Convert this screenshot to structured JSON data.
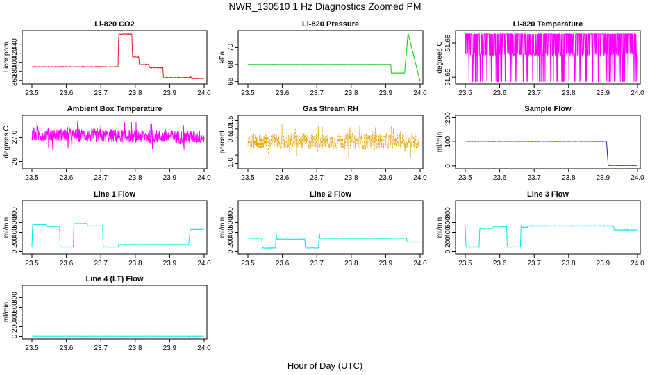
{
  "figure": {
    "title": "NWR_130510  1 Hz Diagnostics Zoomed PM",
    "xlabel": "Hour of Day (UTC)"
  },
  "chart_data": [
    {
      "type": "line",
      "title": "Li-820 CO2",
      "ylabel": "Licor ppm",
      "color": "#e8201a",
      "xlim": [
        23.5,
        24.0
      ],
      "ylim": [
        352,
        470
      ],
      "xticks": [
        "23.5",
        "23.6",
        "23.7",
        "23.8",
        "23.9",
        "24.0"
      ],
      "yticks": [
        360,
        380,
        400,
        420,
        440
      ],
      "segments": [
        [
          23.5,
          390
        ],
        [
          23.75,
          390
        ],
        [
          23.752,
          462
        ],
        [
          23.79,
          462
        ],
        [
          23.792,
          412
        ],
        [
          23.81,
          412
        ],
        [
          23.812,
          395
        ],
        [
          23.84,
          395
        ],
        [
          23.842,
          388
        ],
        [
          23.88,
          388
        ],
        [
          23.882,
          366
        ],
        [
          23.96,
          366
        ],
        [
          23.961,
          372
        ],
        [
          23.962,
          364
        ],
        [
          24.0,
          364
        ]
      ],
      "noise": 1.5
    },
    {
      "type": "line",
      "title": "Li-820 Pressure",
      "ylabel": "kPa",
      "color": "#00cc00",
      "xlim": [
        23.5,
        24.0
      ],
      "ylim": [
        65.7,
        72.0
      ],
      "xticks": [
        "23.5",
        "23.6",
        "23.7",
        "23.8",
        "23.9",
        "24.0"
      ],
      "yticks": [
        66,
        68,
        70
      ],
      "segments": [
        [
          23.5,
          68.0
        ],
        [
          23.915,
          68.0
        ],
        [
          23.916,
          67.0
        ],
        [
          23.955,
          67.0
        ],
        [
          23.965,
          71.7
        ],
        [
          24.0,
          66.0
        ]
      ],
      "noise": 0.02
    },
    {
      "type": "line",
      "title": "Li-820 Temperature",
      "ylabel": "degrees C",
      "color": "#ff00ff",
      "xlim": [
        23.5,
        24.0
      ],
      "ylim": [
        51.644,
        51.691
      ],
      "xticks": [
        "23.5",
        "23.6",
        "23.7",
        "23.8",
        "23.9",
        "24.0"
      ],
      "yticks": [
        51.65,
        51.68
      ],
      "ytickLabels": [
        "51.65",
        "51.68"
      ],
      "style": "toggle",
      "hi": 51.688,
      "mid": 51.67,
      "lo": 51.646
    },
    {
      "type": "line",
      "title": "Ambient Box Temperature",
      "ylabel": "degrees C",
      "color": "#ff00ff",
      "xlim": [
        23.5,
        24.0
      ],
      "ylim": [
        25.7,
        27.9
      ],
      "xticks": [
        "23.5",
        "23.6",
        "23.7",
        "23.8",
        "23.9",
        "24.0"
      ],
      "yticks": [
        26,
        27
      ],
      "ytickLabels": [
        "26",
        "27.0"
      ],
      "segments": [
        [
          23.5,
          27.1
        ],
        [
          24.0,
          27.0
        ]
      ],
      "noise": 0.55,
      "spikes": true
    },
    {
      "type": "line",
      "title": "Gas Stream RH",
      "ylabel": "percent",
      "color": "#e6a000",
      "xlim": [
        23.5,
        24.0
      ],
      "ylim": [
        -1.3,
        1.8
      ],
      "xticks": [
        "23.5",
        "23.6",
        "23.7",
        "23.8",
        "23.9",
        "24.0"
      ],
      "yticks": [
        -1.0,
        -0.5,
        0.5,
        1.0,
        1.5
      ],
      "ytickLabels": [
        "-1.0",
        "",
        "0.5",
        "1.0",
        "1.5"
      ],
      "segments": [
        [
          23.5,
          0.3
        ],
        [
          24.0,
          0.3
        ]
      ],
      "noise": 0.9,
      "spikes": true,
      "dotted": true
    },
    {
      "type": "line",
      "title": "Sample Flow",
      "ylabel": "ml/min",
      "color": "#1a1acc",
      "xlim": [
        23.5,
        24.0
      ],
      "ylim": [
        -12,
        210
      ],
      "xticks": [
        "23.5",
        "23.6",
        "23.7",
        "23.8",
        "23.9",
        "24.0"
      ],
      "yticks": [
        0,
        100,
        200
      ],
      "segments": [
        [
          23.5,
          100
        ],
        [
          23.91,
          100
        ],
        [
          23.915,
          2
        ],
        [
          24.0,
          2
        ]
      ],
      "noise": 1.5
    },
    {
      "type": "line",
      "title": "Line 1 Flow",
      "ylabel": "ml/min",
      "color": "#00e8e8",
      "xlim": [
        23.5,
        24.0
      ],
      "ylim": [
        -50,
        1050
      ],
      "xticks": [
        "23.5",
        "23.6",
        "23.7",
        "23.8",
        "23.9",
        "24.0"
      ],
      "yticks": [
        0,
        200,
        400,
        600,
        800
      ],
      "segments": [
        [
          23.5,
          100
        ],
        [
          23.502,
          560
        ],
        [
          23.54,
          560
        ],
        [
          23.542,
          520
        ],
        [
          23.58,
          520
        ],
        [
          23.582,
          100
        ],
        [
          23.62,
          100
        ],
        [
          23.622,
          580
        ],
        [
          23.66,
          580
        ],
        [
          23.662,
          530
        ],
        [
          23.705,
          530
        ],
        [
          23.707,
          100
        ],
        [
          23.75,
          100
        ],
        [
          23.752,
          150
        ],
        [
          23.955,
          150
        ],
        [
          23.96,
          460
        ],
        [
          24.0,
          460
        ]
      ],
      "noise": 8
    },
    {
      "type": "line",
      "title": "Line 2 Flow",
      "ylabel": "ml/min",
      "color": "#00e8e8",
      "xlim": [
        23.5,
        24.0
      ],
      "ylim": [
        -50,
        1050
      ],
      "xticks": [
        "23.5",
        "23.6",
        "23.7",
        "23.8",
        "23.9",
        "24.0"
      ],
      "yticks": [
        0,
        200,
        400,
        600,
        800
      ],
      "segments": [
        [
          23.5,
          280
        ],
        [
          23.54,
          280
        ],
        [
          23.542,
          80
        ],
        [
          23.58,
          80
        ],
        [
          23.582,
          380
        ],
        [
          23.584,
          260
        ],
        [
          23.665,
          260
        ],
        [
          23.667,
          80
        ],
        [
          23.705,
          80
        ],
        [
          23.707,
          420
        ],
        [
          23.709,
          280
        ],
        [
          23.96,
          280
        ],
        [
          23.962,
          200
        ],
        [
          24.0,
          200
        ]
      ],
      "noise": 10
    },
    {
      "type": "line",
      "title": "Line 3 Flow",
      "ylabel": "ml/min",
      "color": "#00e8e8",
      "xlim": [
        23.5,
        24.0
      ],
      "ylim": [
        -50,
        1050
      ],
      "xticks": [
        "23.5",
        "23.6",
        "23.7",
        "23.8",
        "23.9",
        "24.0"
      ],
      "yticks": [
        0,
        200,
        400,
        600,
        800
      ],
      "segments": [
        [
          23.5,
          520
        ],
        [
          23.502,
          100
        ],
        [
          23.54,
          100
        ],
        [
          23.542,
          480
        ],
        [
          23.58,
          480
        ],
        [
          23.582,
          520
        ],
        [
          23.62,
          520
        ],
        [
          23.622,
          100
        ],
        [
          23.66,
          100
        ],
        [
          23.662,
          560
        ],
        [
          23.664,
          500
        ],
        [
          23.68,
          500
        ],
        [
          23.682,
          530
        ],
        [
          23.93,
          530
        ],
        [
          23.932,
          450
        ],
        [
          24.0,
          450
        ]
      ],
      "noise": 12
    },
    {
      "type": "line",
      "title": "Line 4 (LT) Flow",
      "ylabel": "ml/min",
      "color": "#00e8e8",
      "xlim": [
        23.5,
        24.0
      ],
      "ylim": [
        -50,
        1050
      ],
      "xticks": [
        "23.5",
        "23.6",
        "23.7",
        "23.8",
        "23.9",
        "24.0"
      ],
      "yticks": [
        0,
        200,
        400,
        600,
        800
      ],
      "segments": [
        [
          23.5,
          5
        ],
        [
          23.955,
          5
        ],
        [
          23.956,
          -5
        ],
        [
          23.958,
          5
        ],
        [
          24.0,
          5
        ]
      ],
      "noise": 2
    }
  ]
}
